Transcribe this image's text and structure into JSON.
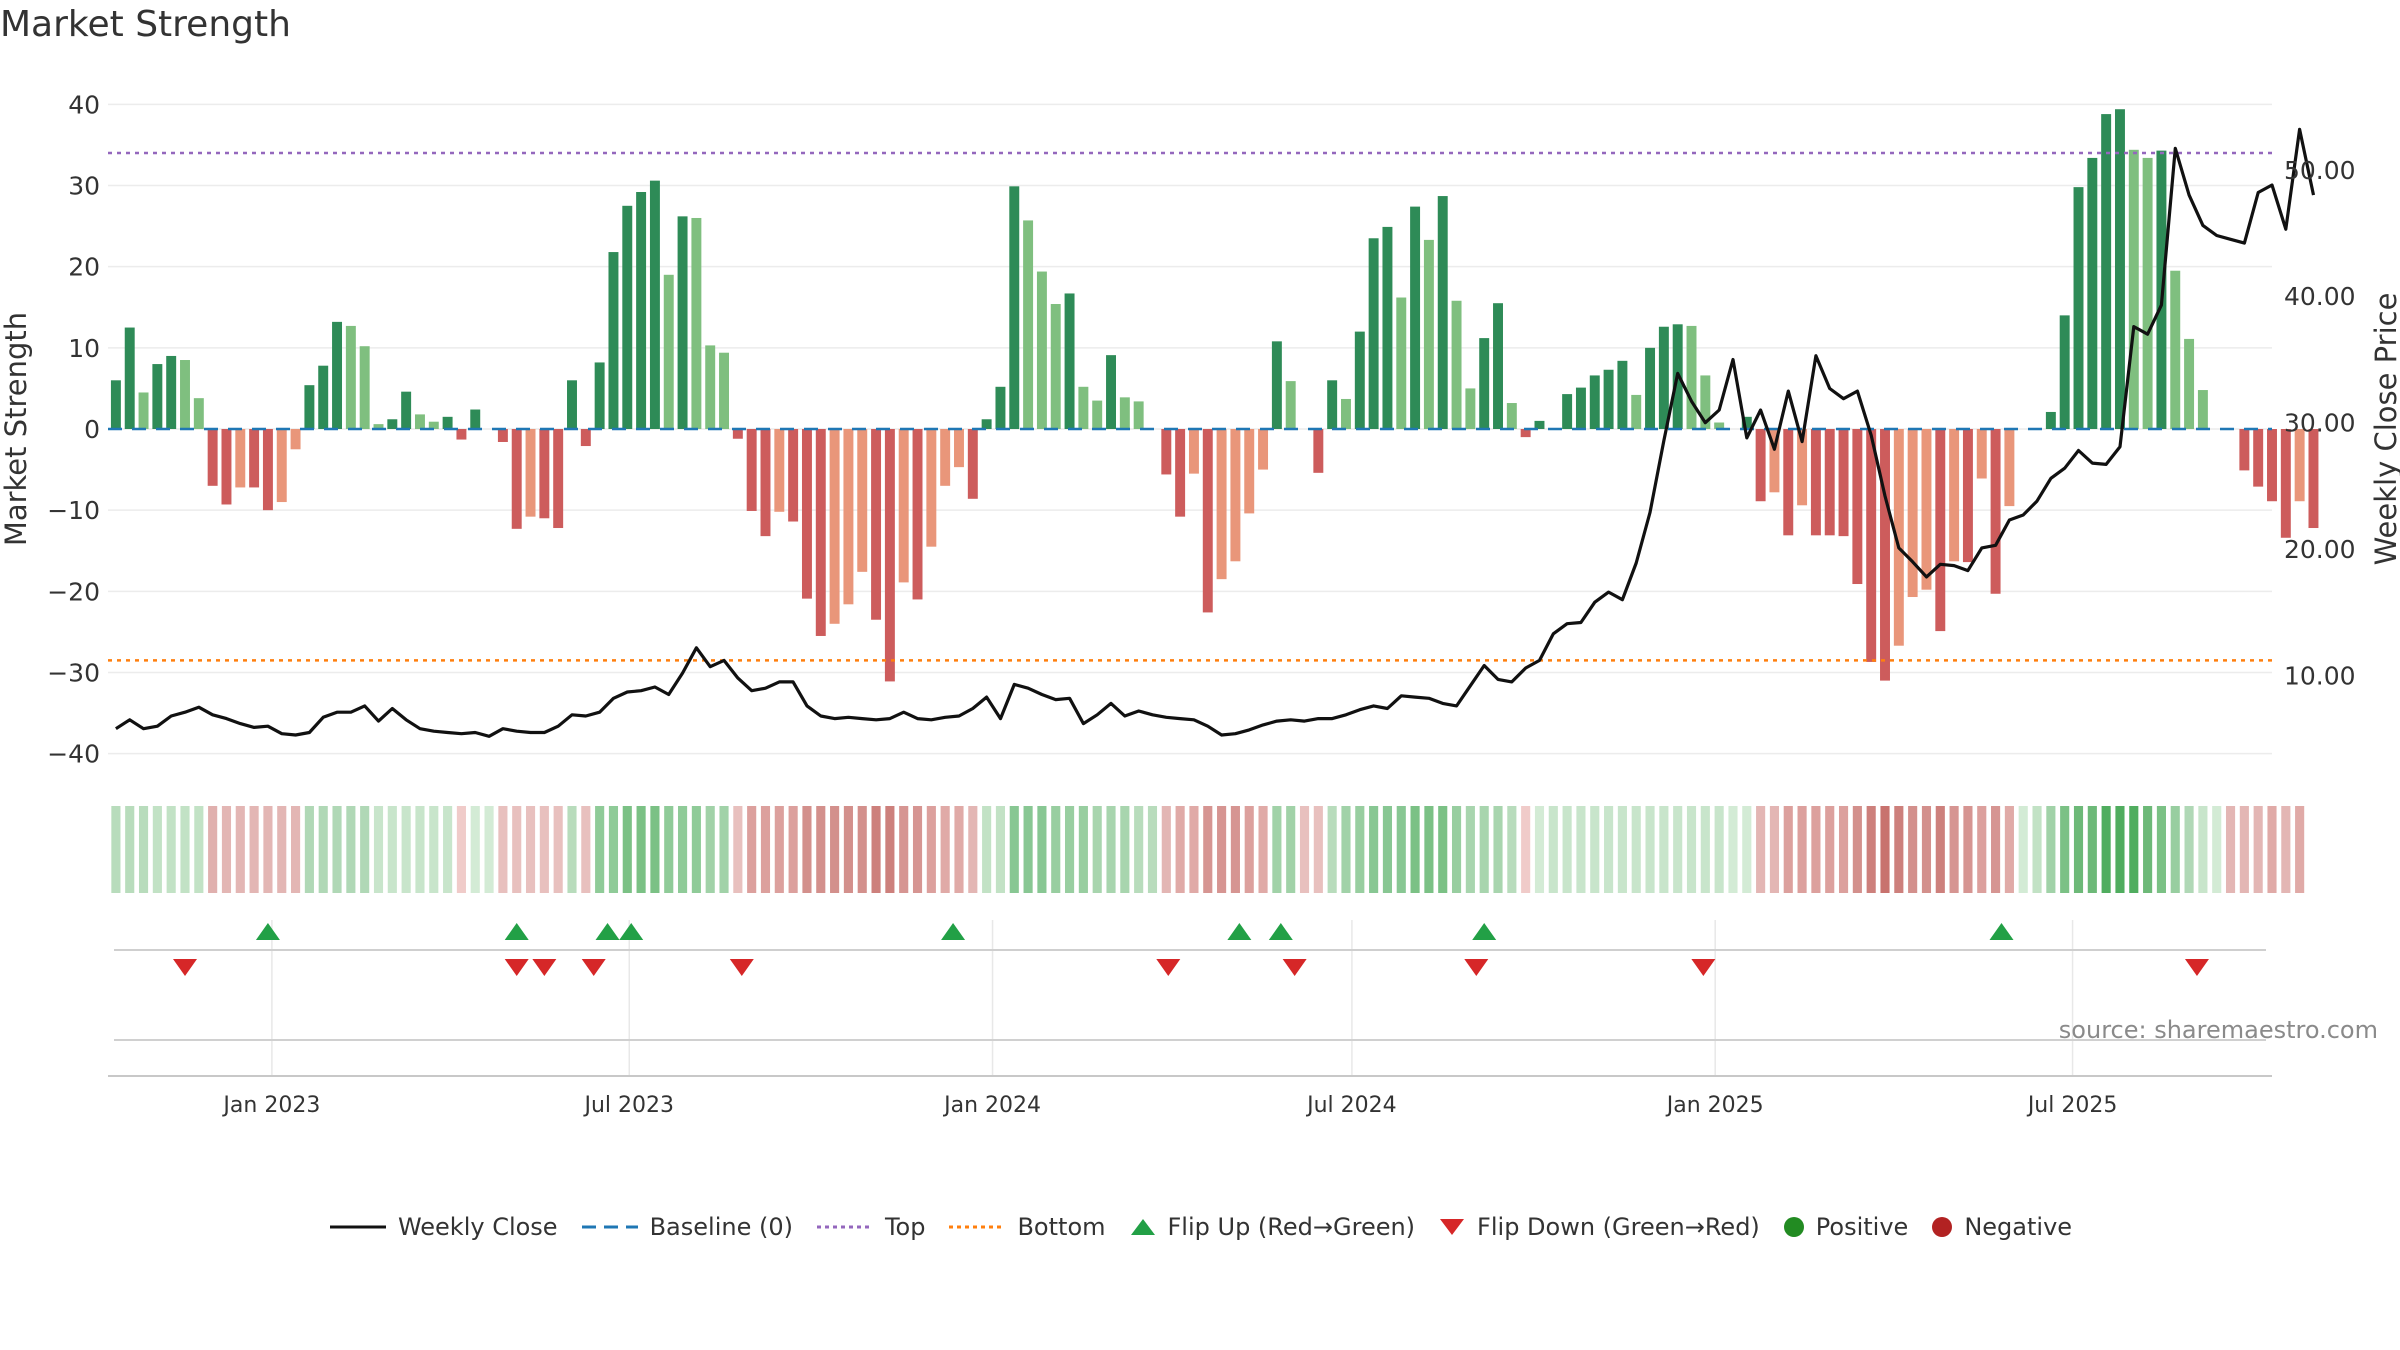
{
  "title": "Market Strength",
  "source": "source: sharemaestro.com",
  "colors": {
    "pos_dark": "#2e8b57",
    "pos_light": "#7fbf7f",
    "neg_dark": "#cd5c5c",
    "neg_light": "#e9967a",
    "close_line": "#111111",
    "baseline": "#1f77b4",
    "top": "#9467bd",
    "bottom": "#ff7f0e",
    "flip_up": "#22a046",
    "flip_down": "#d62728",
    "positive": "#228b22",
    "negative": "#b22222"
  },
  "legend": [
    {
      "key": "close",
      "label": "Weekly Close"
    },
    {
      "key": "baseline",
      "label": "Baseline (0)"
    },
    {
      "key": "top",
      "label": "Top"
    },
    {
      "key": "bottom",
      "label": "Bottom"
    },
    {
      "key": "flip_up",
      "label": "Flip Up (Red→Green)"
    },
    {
      "key": "flip_down",
      "label": "Flip Down (Green→Red)"
    },
    {
      "key": "positive",
      "label": "Positive"
    },
    {
      "key": "negative",
      "label": "Negative"
    }
  ],
  "chart_data": {
    "type": "bar",
    "ylabel": "Market Strength",
    "y2label": "Weekly Close Price",
    "ylim": [
      -43,
      43
    ],
    "yticks": [
      40,
      30,
      20,
      10,
      0,
      -10,
      -20,
      -30,
      -40
    ],
    "ytick_labels": [
      "40",
      "30",
      "20",
      "10",
      "0",
      "−10",
      "−20",
      "−30",
      "−40"
    ],
    "y2lim": [
      1.9,
      57.1
    ],
    "y2ticks": [
      50,
      40,
      30,
      20,
      10
    ],
    "y2tick_labels": [
      "50.00",
      "40.00",
      "30.00",
      "20.00",
      "10.00"
    ],
    "xlim": [
      "2022-10-10",
      "2025-10-10"
    ],
    "xticks": [
      {
        "date": "2023-01-01",
        "label": "Jan 2023"
      },
      {
        "date": "2023-07-01",
        "label": "Jul 2023"
      },
      {
        "date": "2024-01-01",
        "label": "Jan 2024"
      },
      {
        "date": "2024-07-01",
        "label": "Jul 2024"
      },
      {
        "date": "2025-01-01",
        "label": "Jan 2025"
      },
      {
        "date": "2025-07-01",
        "label": "Jul 2025"
      }
    ],
    "top_line": 34,
    "bottom_line": -28.5,
    "baseline": 0,
    "start_date": "2022-10-14",
    "strength": [
      6,
      12.5,
      4.5,
      8,
      9,
      8.5,
      3.8,
      -7,
      -9.3,
      -7.2,
      -7.2,
      -10,
      -9,
      -2.5,
      5.4,
      7.8,
      13.2,
      12.7,
      10.2,
      0.6,
      1.2,
      4.6,
      1.8,
      0.9,
      1.5,
      -1.3,
      2.4,
      0,
      -1.6,
      -12.3,
      -10.8,
      -11,
      -12.2,
      6,
      -2.1,
      8.2,
      21.8,
      27.5,
      29.2,
      30.6,
      19,
      26.2,
      26,
      10.3,
      9.4,
      -1.2,
      -10.1,
      -13.2,
      -10.2,
      -11.4,
      -20.9,
      -25.5,
      -24,
      -21.6,
      -17.6,
      -23.5,
      -31.1,
      -18.9,
      -21,
      -14.5,
      -7,
      -4.7,
      -8.6,
      1.2,
      5.2,
      29.9,
      25.7,
      19.4,
      15.4,
      16.7,
      5.2,
      3.5,
      9.1,
      3.9,
      3.4,
      0,
      -5.6,
      -10.8,
      -5.5,
      -22.6,
      -18.5,
      -16.3,
      -10.4,
      -5,
      10.8,
      5.9,
      0,
      -5.4,
      6,
      3.7,
      12,
      23.5,
      24.9,
      16.2,
      27.4,
      23.3,
      28.7,
      15.8,
      5,
      11.2,
      15.5,
      3.2,
      -1,
      1,
      0,
      4.3,
      5.1,
      6.6,
      7.3,
      8.4,
      4.2,
      10,
      12.6,
      12.9,
      12.7,
      6.6,
      0.8,
      0,
      1.5,
      -8.9,
      -7.8,
      -13.1,
      -9.4,
      -13.1,
      -13.1,
      -13.2,
      -19.1,
      -28.7,
      -31,
      -26.7,
      -20.7,
      -19.8,
      -24.9,
      -16.3,
      -16.4,
      -6.1,
      -20.3,
      -9.5,
      0,
      0,
      2.1,
      14,
      29.8,
      33.4,
      38.8,
      39.4,
      34.4,
      33.4,
      34.3,
      19.5,
      11.1,
      4.8,
      0,
      0,
      -5.1,
      -7.1,
      -8.9,
      -13.4,
      -8.9,
      -12.2
    ],
    "weekly_close": [
      5.8,
      6.5,
      5.8,
      6,
      6.8,
      7.1,
      7.5,
      6.9,
      6.6,
      6.2,
      5.9,
      6,
      5.4,
      5.3,
      5.5,
      6.7,
      7.1,
      7.1,
      7.6,
      6.4,
      7.4,
      6.5,
      5.8,
      5.6,
      5.5,
      5.4,
      5.5,
      5.2,
      5.8,
      5.6,
      5.5,
      5.5,
      6,
      6.9,
      6.8,
      7.1,
      8.2,
      8.7,
      8.8,
      9.1,
      8.5,
      10.2,
      12.2,
      10.7,
      11.2,
      9.8,
      8.8,
      9,
      9.5,
      9.5,
      7.6,
      6.8,
      6.6,
      6.7,
      6.6,
      6.5,
      6.6,
      7.1,
      6.6,
      6.5,
      6.7,
      6.8,
      7.4,
      8.3,
      6.6,
      9.3,
      9,
      8.5,
      8.1,
      8.2,
      6.2,
      6.9,
      7.8,
      6.8,
      7.2,
      6.9,
      6.7,
      6.6,
      6.5,
      6,
      5.3,
      5.4,
      5.7,
      6.1,
      6.4,
      6.5,
      6.4,
      6.6,
      6.6,
      6.9,
      7.3,
      7.6,
      7.4,
      8.4,
      8.3,
      8.2,
      7.8,
      7.6,
      9.2,
      10.8,
      9.7,
      9.5,
      10.6,
      11.2,
      13.3,
      14.1,
      14.2,
      15.8,
      16.6,
      16,
      18.9,
      22.9,
      28.6,
      33.9,
      31.7,
      30,
      31,
      35,
      28.8,
      31,
      27.9,
      32.5,
      28.5,
      35.3,
      32.7,
      31.9,
      32.5,
      29,
      24.2,
      20.1,
      19,
      17.8,
      18.8,
      18.7,
      18.3,
      20.1,
      20.3,
      22.3,
      22.7,
      23.8,
      25.6,
      26.4,
      27.8,
      26.8,
      26.7,
      28.1,
      37.6,
      37,
      39.3,
      51.7,
      48,
      45.6,
      44.8,
      44.5,
      44.2,
      48.2,
      48.8,
      45.3,
      53.2,
      48
    ]
  },
  "strip": {
    "start_date": "2022-10-14",
    "colors": [
      "#b8dcbc",
      "#b8dcbc",
      "#b8dcbc",
      "#c2e2c5",
      "#c2e2c5",
      "#c2e2c5",
      "#c2e2c5",
      "#e0b0ae",
      "#e3b6b4",
      "#e3b6b4",
      "#e3b6b4",
      "#e3b6b4",
      "#e3b6b4",
      "#e3b6b4",
      "#b0d8b6",
      "#b0d8b6",
      "#b0d8b6",
      "#b0d8b6",
      "#b0d8b6",
      "#c8e5cb",
      "#c8e5cb",
      "#c8e5cb",
      "#c8e5cb",
      "#c8e5cb",
      "#c8e5cb",
      "#f0cbc9",
      "#d3ebd5",
      "#d3ebd5",
      "#e8c0be",
      "#e8c0be",
      "#e8c0be",
      "#e8c0be",
      "#e8c0be",
      "#b8dcbc",
      "#e8c0be",
      "#8fcb98",
      "#8fcb98",
      "#7bc185",
      "#7bc185",
      "#7bc185",
      "#8fcb98",
      "#8fcb98",
      "#8fcb98",
      "#a1d2a8",
      "#a1d2a8",
      "#e8c0be",
      "#dca09d",
      "#dca09d",
      "#dca09d",
      "#dca09d",
      "#d3908c",
      "#d3908c",
      "#d3908c",
      "#d3908c",
      "#d3908c",
      "#cd807c",
      "#cd807c",
      "#d69592",
      "#d69592",
      "#dca09d",
      "#e0aaa7",
      "#e0aaa7",
      "#e3b6b4",
      "#c2e2c5",
      "#c2e2c5",
      "#88c793",
      "#88c793",
      "#88c793",
      "#98cea0",
      "#98cea0",
      "#98cea0",
      "#a8d5ae",
      "#a8d5ae",
      "#a8d5ae",
      "#b8dcbc",
      "#b8dcbc",
      "#e3b6b4",
      "#e0aaa7",
      "#e0aaa7",
      "#d69592",
      "#d69592",
      "#d69592",
      "#dca09d",
      "#e0aaa7",
      "#a1d2a8",
      "#a1d2a8",
      "#e8c0be",
      "#e8c0be",
      "#b8dcbc",
      "#a1d2a8",
      "#98cea0",
      "#88c793",
      "#88c793",
      "#88c793",
      "#7bc185",
      "#7bc185",
      "#7bc185",
      "#98cea0",
      "#a8d5ae",
      "#a8d5ae",
      "#a8d5ae",
      "#b8dcbc",
      "#f0cbc9",
      "#d3ebd5",
      "#c8e5cb",
      "#c8e5cb",
      "#c8e5cb",
      "#c8e5cb",
      "#c8e5cb",
      "#c8e5cb",
      "#c8e5cb",
      "#c8e5cb",
      "#c8e5cb",
      "#c8e5cb",
      "#c8e5cb",
      "#c8e5cb",
      "#c8e5cb",
      "#d3ebd5",
      "#d3ebd5",
      "#e3b6b4",
      "#e3b6b4",
      "#dca09d",
      "#dca09d",
      "#dca09d",
      "#dca09d",
      "#dca09d",
      "#d3908c",
      "#cd807c",
      "#c8726e",
      "#cd807c",
      "#d3908c",
      "#d3908c",
      "#cd807c",
      "#d69592",
      "#d69592",
      "#dca09d",
      "#d69592",
      "#e0aaa7",
      "#d3ebd5",
      "#c2e2c5",
      "#a1d2a8",
      "#7bc185",
      "#6db978",
      "#6db978",
      "#50ad5f",
      "#50ad5f",
      "#50ad5f",
      "#6db978",
      "#7bc185",
      "#98cea0",
      "#b0d8b6",
      "#c8e5cb",
      "#d3ebd5",
      "#e3b6b4",
      "#e3b6b4",
      "#e3b6b4",
      "#e0aaa7",
      "#e3b6b4",
      "#e0aaa7"
    ]
  },
  "flips": {
    "up": [
      "2022-12-30",
      "2023-05-05",
      "2023-06-20",
      "2023-07-02",
      "2023-12-12",
      "2024-05-05",
      "2024-05-26",
      "2024-09-06",
      "2025-05-26"
    ],
    "down": [
      "2022-11-18",
      "2023-05-05",
      "2023-05-19",
      "2023-06-13",
      "2023-08-27",
      "2024-03-30",
      "2024-06-02",
      "2024-09-02",
      "2024-12-26",
      "2025-09-02"
    ]
  }
}
